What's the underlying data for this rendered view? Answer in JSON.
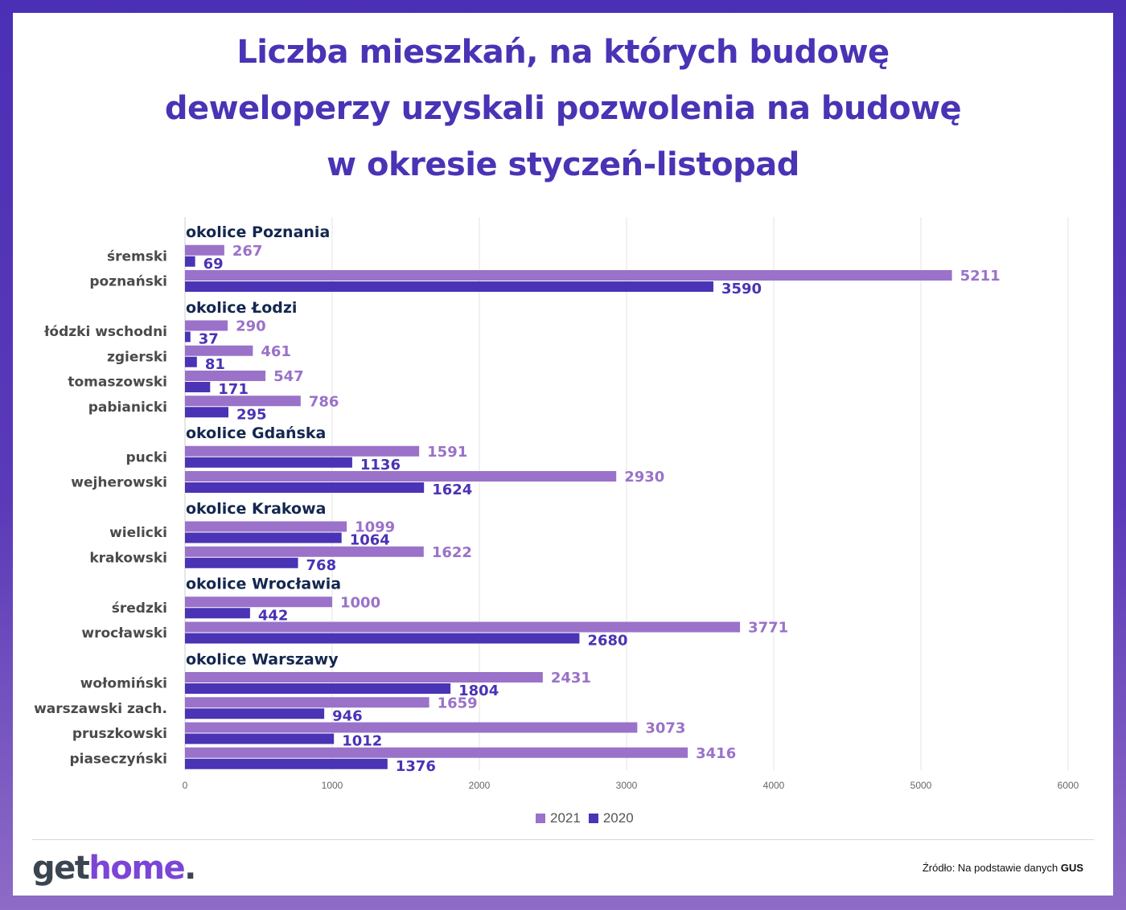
{
  "title_lines": [
    "Liczba mieszkań, na których budowę",
    "deweloperzy uzyskali pozwolenia na budowę",
    "w okresie styczeń-listopad"
  ],
  "colors": {
    "s2021": "#9a72c9",
    "s2020": "#4a33b5",
    "group_label": "#13274f",
    "category_label": "#4a4a4a",
    "grid": "#e3e3e3",
    "frame": "#4b2fb5"
  },
  "chart_data": {
    "type": "bar",
    "orientation": "horizontal",
    "title": "Liczba mieszkań, na których budowę deweloperzy uzyskali pozwolenia na budowę w okresie styczeń-listopad",
    "xlim": [
      0,
      6000
    ],
    "x_ticks": [
      "0",
      "1000",
      "2000",
      "3000",
      "4000",
      "5000",
      "6000"
    ],
    "grid": "vertical",
    "legend_position": "bottom",
    "series": [
      {
        "name": "2021",
        "color": "#9a72c9"
      },
      {
        "name": "2020",
        "color": "#4a33b5"
      }
    ],
    "groups": [
      {
        "label": "okolice Poznania",
        "categories": [
          {
            "name": "śremski",
            "v2021": 267,
            "v2020": 69
          },
          {
            "name": "poznański",
            "v2021": 5211,
            "v2020": 3590
          }
        ]
      },
      {
        "label": "okolice Łodzi",
        "categories": [
          {
            "name": "łódzki wschodni",
            "v2021": 290,
            "v2020": 37
          },
          {
            "name": "zgierski",
            "v2021": 461,
            "v2020": 81
          },
          {
            "name": "tomaszowski",
            "v2021": 547,
            "v2020": 171
          },
          {
            "name": "pabianicki",
            "v2021": 786,
            "v2020": 295
          }
        ]
      },
      {
        "label": "okolice Gdańska",
        "categories": [
          {
            "name": "pucki",
            "v2021": 1591,
            "v2020": 1136
          },
          {
            "name": "wejherowski",
            "v2021": 2930,
            "v2020": 1624
          }
        ]
      },
      {
        "label": "okolice Krakowa",
        "categories": [
          {
            "name": "wielicki",
            "v2021": 1099,
            "v2020": 1064
          },
          {
            "name": "krakowski",
            "v2021": 1622,
            "v2020": 768
          }
        ]
      },
      {
        "label": "okolice Wrocławia",
        "categories": [
          {
            "name": "średzki",
            "v2021": 1000,
            "v2020": 442
          },
          {
            "name": "wrocławski",
            "v2021": 3771,
            "v2020": 2680
          }
        ]
      },
      {
        "label": "okolice Warszawy",
        "categories": [
          {
            "name": "wołomiński",
            "v2021": 2431,
            "v2020": 1804
          },
          {
            "name": "warszawski zach.",
            "v2021": 1659,
            "v2020": 946
          },
          {
            "name": "pruszkowski",
            "v2021": 3073,
            "v2020": 1012
          },
          {
            "name": "piaseczyński",
            "v2021": 3416,
            "v2020": 1376
          }
        ]
      }
    ]
  },
  "legend": [
    {
      "label": "2021",
      "color": "#9a72c9"
    },
    {
      "label": "2020",
      "color": "#4a33b5"
    }
  ],
  "logo": {
    "part1": "get",
    "part2": "home",
    "part3": "."
  },
  "source": {
    "prefix": "Źródło: Na podstawie danych ",
    "bold": "GUS"
  }
}
